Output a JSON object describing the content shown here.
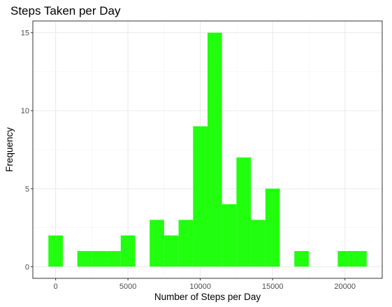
{
  "chart_data": {
    "type": "bar",
    "title": "Steps Taken per Day",
    "xlabel": "Number of Steps per Day",
    "ylabel": "Frequency",
    "bin_width": 1000,
    "bins": [
      {
        "x": 0,
        "count": 2
      },
      {
        "x": 1000,
        "count": 0
      },
      {
        "x": 2000,
        "count": 1
      },
      {
        "x": 3000,
        "count": 1
      },
      {
        "x": 4000,
        "count": 1
      },
      {
        "x": 5000,
        "count": 2
      },
      {
        "x": 6000,
        "count": 0
      },
      {
        "x": 7000,
        "count": 3
      },
      {
        "x": 8000,
        "count": 2
      },
      {
        "x": 9000,
        "count": 3
      },
      {
        "x": 10000,
        "count": 9
      },
      {
        "x": 11000,
        "count": 15
      },
      {
        "x": 12000,
        "count": 4
      },
      {
        "x": 13000,
        "count": 7
      },
      {
        "x": 14000,
        "count": 3
      },
      {
        "x": 15000,
        "count": 5
      },
      {
        "x": 16000,
        "count": 0
      },
      {
        "x": 17000,
        "count": 1
      },
      {
        "x": 18000,
        "count": 0
      },
      {
        "x": 19000,
        "count": 0
      },
      {
        "x": 20000,
        "count": 1
      },
      {
        "x": 21000,
        "count": 1
      }
    ],
    "xticks": [
      {
        "value": 0,
        "label": "0"
      },
      {
        "value": 5000,
        "label": "5000"
      },
      {
        "value": 10000,
        "label": "10000"
      },
      {
        "value": 15000,
        "label": "15000"
      },
      {
        "value": 20000,
        "label": "20000"
      }
    ],
    "yticks": [
      {
        "value": 0,
        "label": "0"
      },
      {
        "value": 5,
        "label": "5"
      },
      {
        "value": 10,
        "label": "10"
      },
      {
        "value": 15,
        "label": "15"
      }
    ],
    "xlim": [
      -1575,
      22575
    ],
    "ylim": [
      -0.75,
      15.75
    ],
    "grid": true,
    "legend": "none",
    "colors": {
      "bar": "#21ff0e",
      "grid_major": "#ebebeb",
      "grid_minor": "#f5f5f5",
      "panel_border": "#333333",
      "tick_label": "#4d4d4d"
    }
  }
}
